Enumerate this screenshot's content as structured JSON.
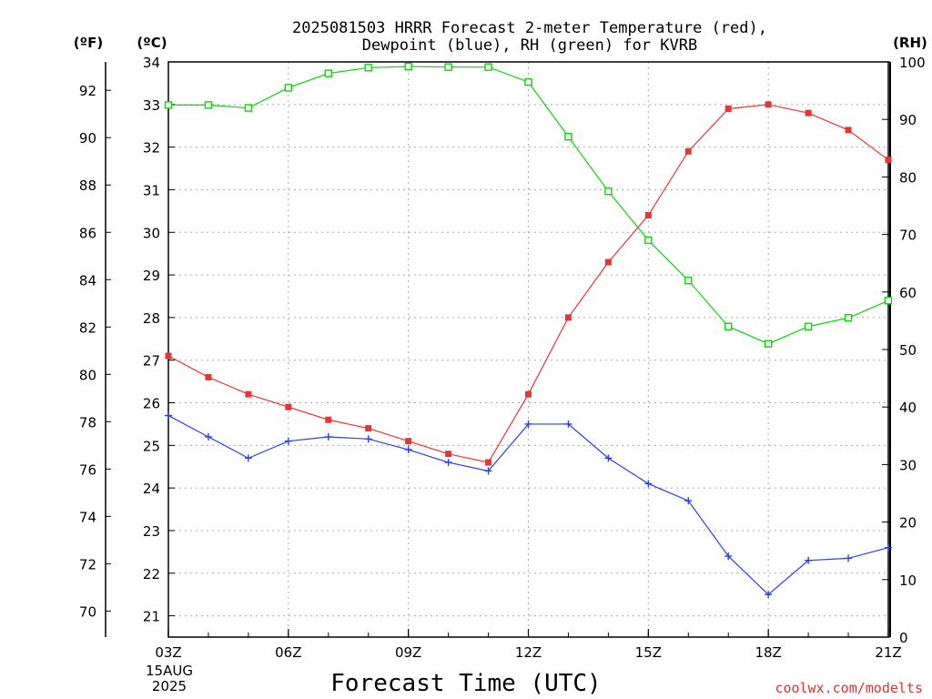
{
  "title_lines": [
    "2025081503 HRRR Forecast 2-meter Temperature (red),",
    "Dewpoint (blue), RH (green) for KVRB"
  ],
  "credit": "coolwx.com/modelts",
  "colors": {
    "temperature": "#e83434",
    "dewpoint": "#2a3fe0",
    "rh": "#10d010",
    "credit": "#e03030"
  },
  "chart_data": {
    "type": "line",
    "title": "2025081503 HRRR Forecast 2-meter Temperature (red), Dewpoint (blue), RH (green) for KVRB",
    "xlabel": "Forecast Time (UTC)",
    "x_ticks": [
      "03Z",
      "06Z",
      "09Z",
      "12Z",
      "15Z",
      "18Z",
      "21Z"
    ],
    "x_date_label": [
      "15AUG",
      "2025"
    ],
    "x": [
      "03Z",
      "04Z",
      "05Z",
      "06Z",
      "07Z",
      "08Z",
      "09Z",
      "10Z",
      "11Z",
      "12Z",
      "13Z",
      "14Z",
      "15Z",
      "16Z",
      "17Z",
      "18Z",
      "19Z",
      "20Z",
      "21Z"
    ],
    "left_axis_f": {
      "label": "(ºF)",
      "ticks": [
        70,
        72,
        74,
        76,
        78,
        80,
        82,
        84,
        86,
        88,
        90,
        92
      ]
    },
    "left_axis_c": {
      "label": "(ºC)",
      "ylim": [
        20.5,
        34
      ],
      "ticks": [
        21,
        22,
        23,
        24,
        25,
        26,
        27,
        28,
        29,
        30,
        31,
        32,
        33,
        34
      ]
    },
    "right_axis_rh": {
      "label": "(RH)",
      "ylim": [
        0,
        100
      ],
      "ticks": [
        0,
        10,
        20,
        30,
        40,
        50,
        60,
        70,
        80,
        90,
        100
      ]
    },
    "grid": true,
    "series": [
      {
        "name": "Temperature (red)",
        "axis": "c",
        "marker": "filled-square",
        "values": [
          27.1,
          26.6,
          26.2,
          25.9,
          25.6,
          25.4,
          25.1,
          24.8,
          24.6,
          26.2,
          28.0,
          29.3,
          30.4,
          31.9,
          32.9,
          33.0,
          32.8,
          32.4,
          31.7
        ]
      },
      {
        "name": "Dewpoint (blue)",
        "axis": "c",
        "marker": "plus",
        "values": [
          25.7,
          25.2,
          24.7,
          25.1,
          25.2,
          25.15,
          24.9,
          24.6,
          24.4,
          25.5,
          25.5,
          24.7,
          24.1,
          23.7,
          22.4,
          21.5,
          22.3,
          22.35,
          22.6
        ]
      },
      {
        "name": "RH (green)",
        "axis": "rh",
        "marker": "open-square",
        "values": [
          92.5,
          92.5,
          92.0,
          95.5,
          98.0,
          99.0,
          99.2,
          99.1,
          99.1,
          96.5,
          87.0,
          77.5,
          69.0,
          62.0,
          54.0,
          51.0,
          54.0,
          55.5,
          58.5
        ]
      }
    ]
  }
}
